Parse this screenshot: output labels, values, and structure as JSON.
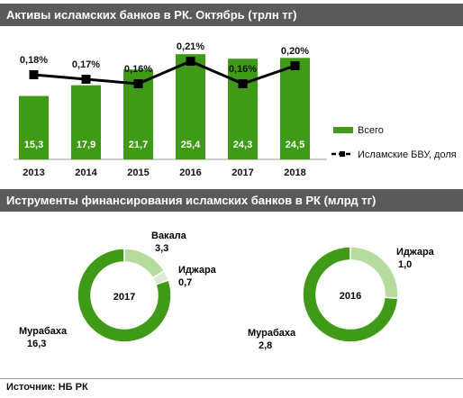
{
  "header1": {
    "title": "Активы исламских банков в РК. Октябрь (трлн тг)"
  },
  "header2": {
    "title": "Иструменты  финансирования исламских банков в РК (млрд  тг)"
  },
  "source": "Источник:  НБ РК",
  "colors": {
    "bar": "#3f9a17",
    "line": "#000000",
    "light": "#b6dc9d",
    "banner": "#5a5a5a"
  },
  "chart_data": [
    {
      "type": "bar",
      "categories": [
        "2013",
        "2014",
        "2015",
        "2016",
        "2017",
        "2018"
      ],
      "series": [
        {
          "name": "Всего",
          "type": "bar",
          "values": [
            15.3,
            17.9,
            21.7,
            25.4,
            24.3,
            24.5
          ],
          "labels": [
            "15,3",
            "17,9",
            "21,7",
            "25,4",
            "24,3",
            "24,5"
          ]
        },
        {
          "name": "Исламские БВУ, доля",
          "type": "line",
          "values": [
            0.18,
            0.17,
            0.16,
            0.21,
            0.16,
            0.2
          ],
          "labels": [
            "0,18%",
            "0,17%",
            "0,16%",
            "0,21%",
            "0,16%",
            "0,20%"
          ]
        }
      ],
      "ylim": [
        0,
        30
      ],
      "line_ylim": [
        0.05,
        0.25
      ],
      "grid": false,
      "legend_position": "right"
    },
    {
      "type": "pie",
      "variant": "donut",
      "center_label": "2017",
      "slices": [
        {
          "name": "Мурабаха",
          "value": 16.3,
          "value_label": "16,3"
        },
        {
          "name": "Вакала",
          "value": 3.3,
          "value_label": "3,3"
        },
        {
          "name": "Иджара",
          "value": 0.7,
          "value_label": "0,7"
        }
      ]
    },
    {
      "type": "pie",
      "variant": "donut",
      "center_label": "2016",
      "slices": [
        {
          "name": "Мурабаха",
          "value": 2.8,
          "value_label": "2,8"
        },
        {
          "name": "Иджара",
          "value": 1.0,
          "value_label": "1,0"
        }
      ]
    }
  ]
}
